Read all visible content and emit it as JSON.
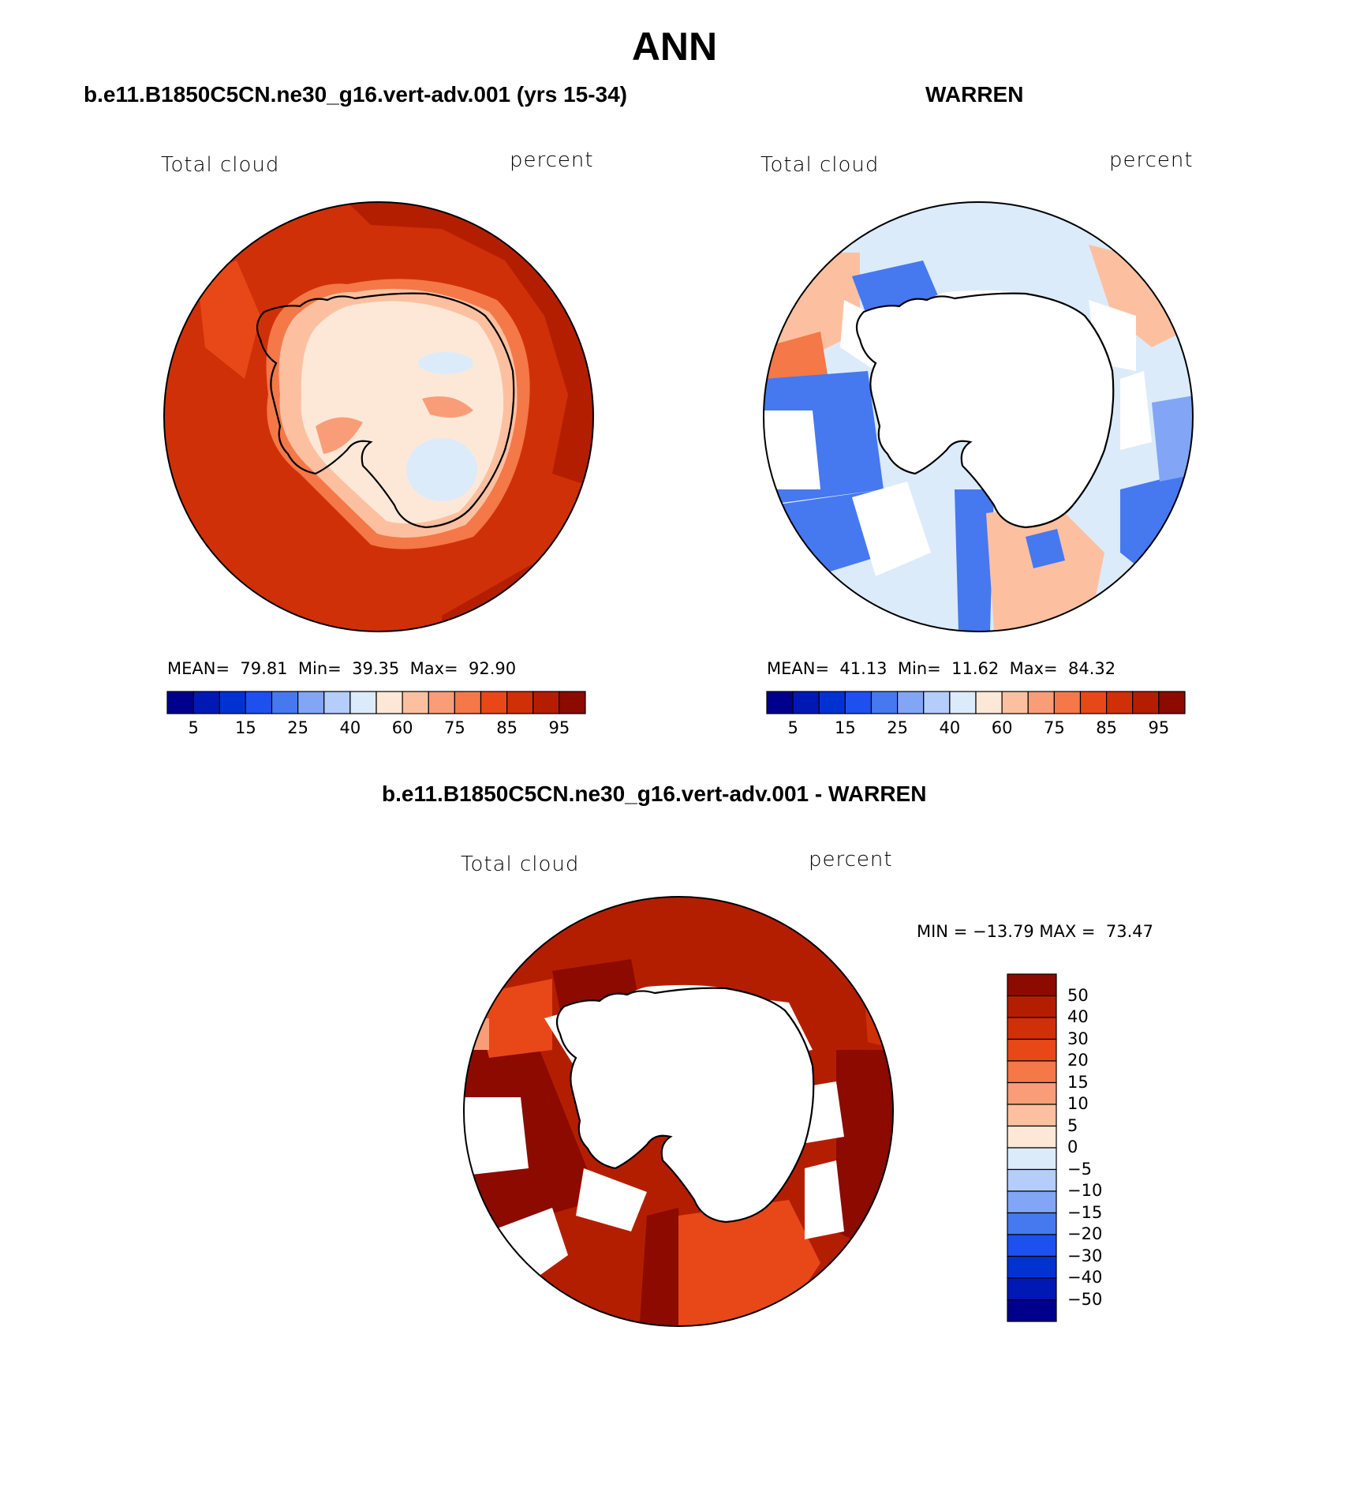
{
  "figure_title": "ANN",
  "panels": [
    {
      "case_title": "b.e11.B1850C5CN.ne30_g16.vert-adv.001 (yrs 15-34)",
      "left_label": "Total cloud",
      "right_label": "percent",
      "stats": {
        "mean_label": "MEAN=",
        "mean": "79.81",
        "min_label": "Min=",
        "min": "39.35",
        "max_label": "Max=",
        "max": "92.90"
      }
    },
    {
      "case_title": "WARREN",
      "left_label": "Total cloud",
      "right_label": "percent",
      "stats": {
        "mean_label": "MEAN=",
        "mean": "41.13",
        "min_label": "Min=",
        "min": "11.62",
        "max_label": "Max=",
        "max": "84.32"
      }
    },
    {
      "case_title": "b.e11.B1850C5CN.ne30_g16.vert-adv.001 - WARREN",
      "left_label": "Total cloud",
      "right_label": "percent",
      "minmax": "MIN = −13.79 MAX =  73.47"
    }
  ],
  "colorbar_abs": {
    "colors": [
      "#00008c",
      "#0019b4",
      "#0032d2",
      "#1e50f0",
      "#4678f0",
      "#82a5f5",
      "#b4cdfa",
      "#dcebfa",
      "#fde8d8",
      "#fcc0a0",
      "#f99d78",
      "#f47848",
      "#e84818",
      "#d03008",
      "#b41e00",
      "#8c0a00"
    ],
    "labels": [
      "5",
      "15",
      "25",
      "40",
      "60",
      "75",
      "85",
      "95"
    ]
  },
  "colorbar_diff": {
    "colors": [
      "#8c0a00",
      "#b41e00",
      "#d03008",
      "#e84818",
      "#f47848",
      "#f99d78",
      "#fcc0a0",
      "#fde8d8",
      "#dcebfa",
      "#b4cdfa",
      "#82a5f5",
      "#4678f0",
      "#1e50f0",
      "#0032d2",
      "#0019b4",
      "#00008c"
    ],
    "labels": [
      "50",
      "40",
      "30",
      "20",
      "15",
      "10",
      "5",
      "0",
      "−5",
      "−10",
      "−15",
      "−20",
      "−30",
      "−40",
      "−50"
    ]
  }
}
